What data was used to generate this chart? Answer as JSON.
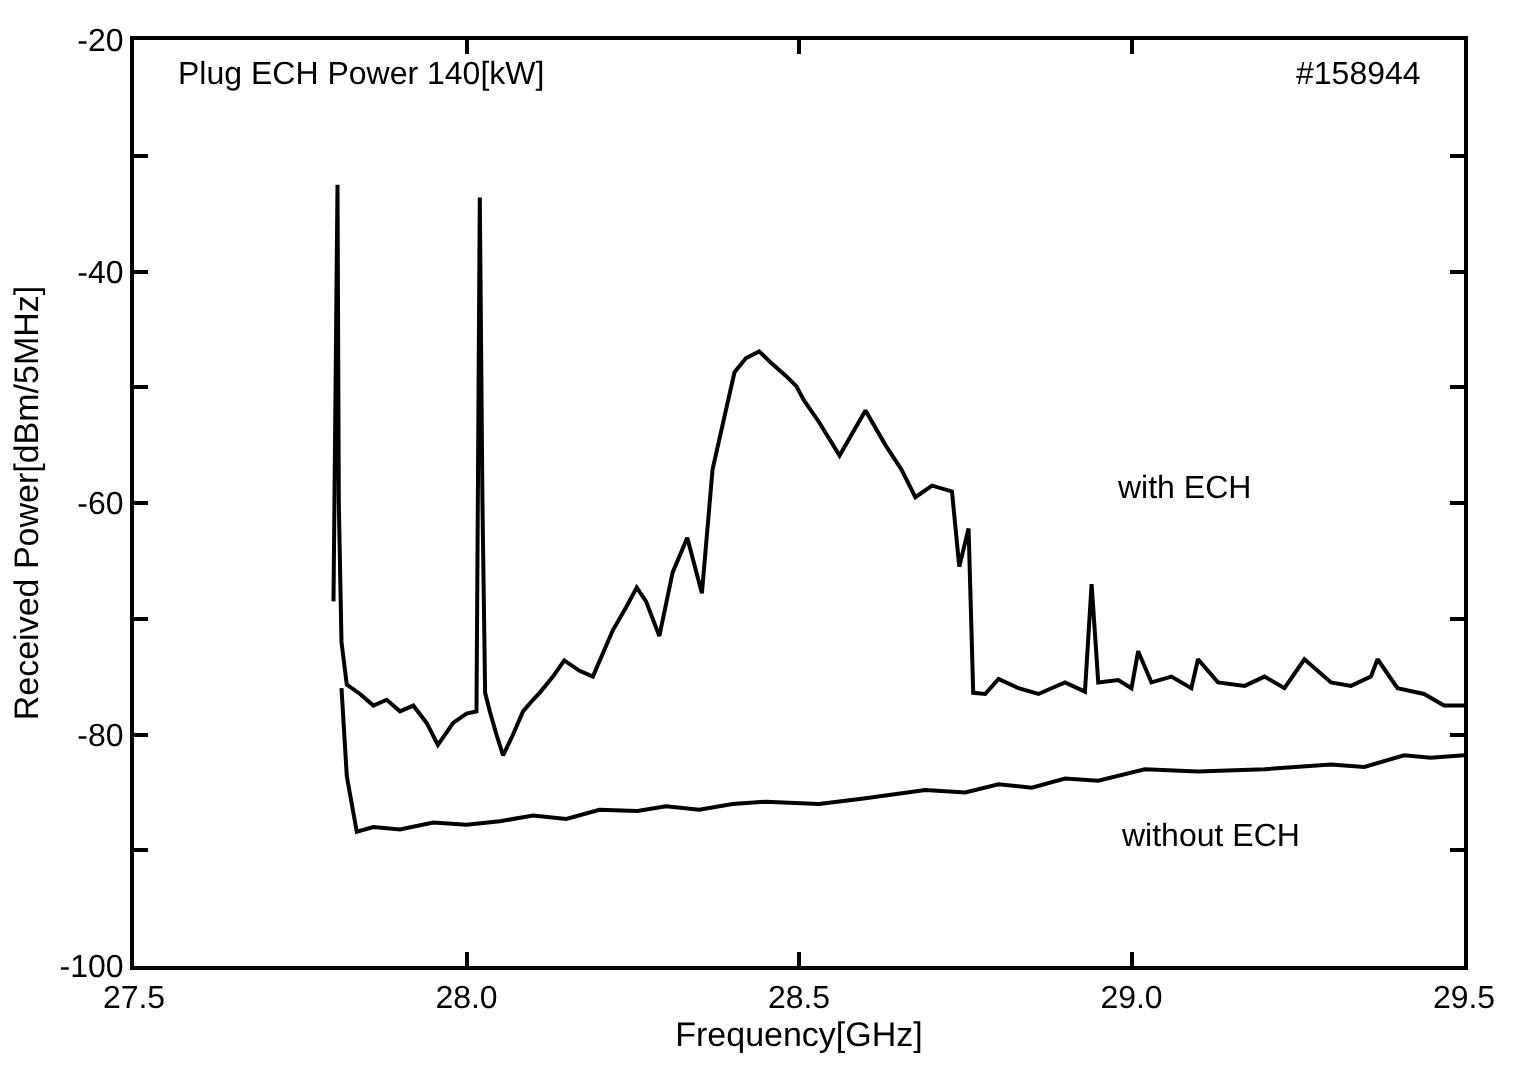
{
  "chart_data": {
    "type": "line",
    "xlabel": "Frequency[GHz]",
    "ylabel": "Received Power[dBm/5MHz]",
    "xlim": [
      27.5,
      29.5
    ],
    "ylim": [
      -100,
      -20
    ],
    "xticks": [
      27.5,
      {
        "value": 28.0,
        "label": "28.0"
      },
      28.5,
      {
        "value": 29.0,
        "label": "29.0"
      },
      29.5
    ],
    "yticks": [
      -100,
      {
        "value": -90,
        "label": null
      },
      -80,
      {
        "value": -70,
        "label": null
      },
      -60,
      {
        "value": -50,
        "label": null
      },
      -40,
      {
        "value": -30,
        "label": null
      },
      -20
    ],
    "legend": false,
    "marker": "none",
    "line_style": "solid",
    "annotations": [
      "Plug ECH Power 140[kW]",
      "#158944"
    ],
    "series": [
      {
        "name": "with ECH",
        "color": "#000000",
        "x": [
          27.8,
          27.806,
          27.808,
          27.812,
          27.82,
          27.84,
          27.86,
          27.88,
          27.9,
          27.92,
          27.94,
          27.957,
          27.98,
          28.0,
          28.015,
          28.02,
          28.024,
          28.028,
          28.035,
          28.045,
          28.055,
          28.07,
          28.085,
          28.1,
          28.11,
          28.13,
          28.147,
          28.17,
          28.19,
          28.22,
          28.24,
          28.256,
          28.27,
          28.29,
          28.31,
          28.332,
          28.354,
          28.37,
          28.39,
          28.403,
          28.42,
          28.44,
          28.46,
          28.48,
          28.496,
          28.507,
          28.53,
          28.561,
          28.58,
          28.6,
          28.63,
          28.654,
          28.675,
          28.7,
          28.73,
          28.741,
          28.755,
          28.762,
          28.78,
          28.8,
          28.83,
          28.86,
          28.9,
          28.93,
          28.94,
          28.95,
          28.98,
          29.0,
          29.01,
          29.03,
          29.06,
          29.09,
          29.1,
          29.13,
          29.17,
          29.2,
          29.23,
          29.26,
          29.3,
          29.33,
          29.36,
          29.37,
          29.4,
          29.44,
          29.47,
          29.5
        ],
        "values": [
          -68.5,
          -32.5,
          -60,
          -72,
          -75.7,
          -76.5,
          -77.5,
          -77,
          -78,
          -77.5,
          -79,
          -80.9,
          -79,
          -78.2,
          -78,
          -33.6,
          -60,
          -76.4,
          -78,
          -80,
          -81.8,
          -80,
          -78,
          -77,
          -76.4,
          -75,
          -73.6,
          -74.5,
          -75,
          -71,
          -69,
          -67.3,
          -68.5,
          -71.5,
          -66,
          -63,
          -67.8,
          -57.1,
          -52,
          -48.7,
          -47.5,
          -46.9,
          -48,
          -49,
          -49.9,
          -51.1,
          -53,
          -55.9,
          -54,
          -52,
          -55,
          -57.1,
          -59.5,
          -58.5,
          -59,
          -65.5,
          -62.2,
          -76.4,
          -76.5,
          -75.2,
          -76,
          -76.5,
          -75.5,
          -76.3,
          -67,
          -75.5,
          -75.3,
          -76,
          -72.8,
          -75.5,
          -75,
          -76,
          -73.5,
          -75.5,
          -75.8,
          -75,
          -76,
          -73.5,
          -75.5,
          -75.8,
          -75,
          -73.5,
          -76,
          -76.5,
          -77.5,
          -77.5
        ]
      },
      {
        "name": "without ECH",
        "color": "#000000",
        "x": [
          27.812,
          27.82,
          27.835,
          27.86,
          27.9,
          27.95,
          28.0,
          28.05,
          28.1,
          28.15,
          28.2,
          28.257,
          28.3,
          28.35,
          28.4,
          28.45,
          28.53,
          28.6,
          28.69,
          28.75,
          28.8,
          28.85,
          28.9,
          28.95,
          29.02,
          29.1,
          29.2,
          29.3,
          29.35,
          29.41,
          29.45,
          29.5
        ],
        "values": [
          -76,
          -83.6,
          -88.4,
          -88,
          -88.2,
          -87.6,
          -87.8,
          -87.5,
          -87,
          -87.3,
          -86.5,
          -86.6,
          -86.2,
          -86.5,
          -86,
          -85.8,
          -86,
          -85.5,
          -84.8,
          -85,
          -84.3,
          -84.6,
          -83.8,
          -84,
          -83,
          -83.2,
          -83,
          -82.6,
          -82.8,
          -81.8,
          -82,
          -81.8
        ]
      }
    ]
  }
}
